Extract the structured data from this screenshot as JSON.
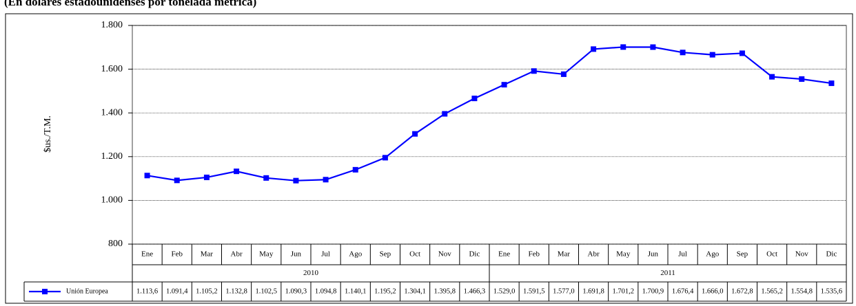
{
  "chart_data": {
    "type": "line",
    "subtitle": "(En dólares estadounidenses por tonelada métrica)",
    "y_label": "$us./T.M.",
    "categories": [
      "Ene",
      "Feb",
      "Mar",
      "Abr",
      "May",
      "Jun",
      "Jul",
      "Ago",
      "Sep",
      "Oct",
      "Nov",
      "Dic",
      "Ene",
      "Feb",
      "Mar",
      "Abr",
      "May",
      "Jun",
      "Jul",
      "Ago",
      "Sep",
      "Oct",
      "Nov",
      "Dic"
    ],
    "years": [
      "2010",
      "2011"
    ],
    "series": [
      {
        "name": "Unión Europea",
        "color": "#0000ff",
        "values": [
          1113.6,
          1091.4,
          1105.2,
          1132.8,
          1102.5,
          1090.3,
          1094.8,
          1140.1,
          1195.2,
          1304.1,
          1395.8,
          1466.3,
          1529.0,
          1591.5,
          1577.0,
          1691.8,
          1701.2,
          1700.9,
          1676.4,
          1666.0,
          1672.8,
          1565.2,
          1554.8,
          1535.6
        ],
        "value_labels": [
          "1.113,6",
          "1.091,4",
          "1.105,2",
          "1.132,8",
          "1.102,5",
          "1.090,3",
          "1.094,8",
          "1.140,1",
          "1.195,2",
          "1.304,1",
          "1.395,8",
          "1.466,3",
          "1.529,0",
          "1.591,5",
          "1.577,0",
          "1.691,8",
          "1.701,2",
          "1.700,9",
          "1.676,4",
          "1.666,0",
          "1.672,8",
          "1.565,2",
          "1.554,8",
          "1.535,6"
        ]
      }
    ],
    "ylim": [
      800,
      1800
    ],
    "yticks": [
      {
        "value": 800,
        "label": "800"
      },
      {
        "value": 1000,
        "label": "1.000"
      },
      {
        "value": 1200,
        "label": "1.200"
      },
      {
        "value": 1400,
        "label": "1.400"
      },
      {
        "value": 1600,
        "label": "1.600"
      },
      {
        "value": 1800,
        "label": "1.800"
      }
    ],
    "grid": true
  }
}
